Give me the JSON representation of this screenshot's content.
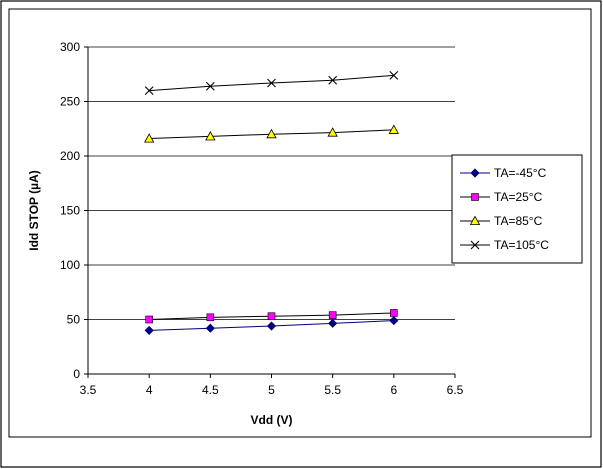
{
  "chart_data": {
    "type": "line",
    "title": "",
    "xlabel": "Vdd (V)",
    "ylabel": "Idd STOP (µA)",
    "xlim": [
      3.5,
      6.5
    ],
    "ylim": [
      0,
      300
    ],
    "x_ticks": [
      "3.5",
      "4",
      "4.5",
      "5",
      "5.5",
      "6",
      "6.5"
    ],
    "y_ticks": [
      "0",
      "50",
      "100",
      "150",
      "200",
      "250",
      "300"
    ],
    "grid": "horizontal",
    "legend_position": "right",
    "x": [
      4,
      4.5,
      5,
      5.5,
      6
    ],
    "series": [
      {
        "name": "TA=-45°C",
        "values": [
          40,
          42,
          44,
          46.5,
          49
        ],
        "color": "#000080",
        "marker": "diamond"
      },
      {
        "name": "TA=25°C",
        "values": [
          50,
          52,
          53,
          54,
          56
        ],
        "color": "#ff00ff",
        "marker": "square"
      },
      {
        "name": "TA=85°C",
        "values": [
          216,
          218,
          220,
          221.5,
          224
        ],
        "color": "#ffff00",
        "marker": "triangle"
      },
      {
        "name": "TA=105°C",
        "values": [
          260,
          264,
          267,
          269.5,
          274
        ],
        "color": "#000000",
        "marker": "x"
      }
    ]
  }
}
